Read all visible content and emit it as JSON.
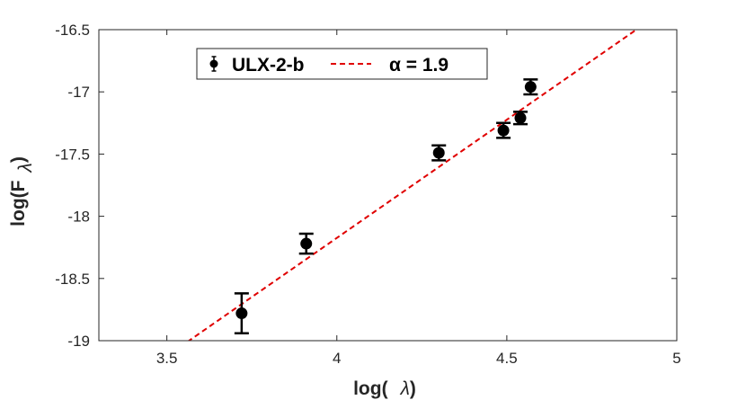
{
  "chart_data": {
    "type": "scatter",
    "xlabel_prefix": "log(",
    "xlabel_symbol": "λ",
    "xlabel_suffix": ")",
    "ylabel_prefix": "log(F",
    "ylabel_symbol": "λ",
    "ylabel_suffix": ")",
    "xlim": [
      3.3,
      5.0
    ],
    "ylim": [
      -19.0,
      -16.5
    ],
    "xticks": [
      3.5,
      4.0,
      4.5,
      5.0
    ],
    "xtick_labels": [
      "3.5",
      "4",
      "4.5",
      "5"
    ],
    "yticks": [
      -16.5,
      -17.0,
      -17.5,
      -18.0,
      -18.5,
      -19.0
    ],
    "ytick_labels": [
      "-16.5",
      "-17",
      "-17.5",
      "-18",
      "-18.5",
      "-19"
    ],
    "grid": false,
    "legend_position": "top-center",
    "series": [
      {
        "name": "ULX-2-b",
        "kind": "errorbar",
        "color": "#000000",
        "points": [
          {
            "x": 3.72,
            "y": -18.78,
            "err": 0.16
          },
          {
            "x": 3.91,
            "y": -18.22,
            "err": 0.08
          },
          {
            "x": 4.3,
            "y": -17.49,
            "err": 0.06
          },
          {
            "x": 4.49,
            "y": -17.31,
            "err": 0.06
          },
          {
            "x": 4.54,
            "y": -17.21,
            "err": 0.05
          },
          {
            "x": 4.57,
            "y": -16.96,
            "err": 0.06
          }
        ]
      },
      {
        "name": "α = 1.9",
        "kind": "line",
        "style": "dashed",
        "color": "#e00000",
        "slope": 1.9,
        "intercept": -25.774
      }
    ]
  }
}
